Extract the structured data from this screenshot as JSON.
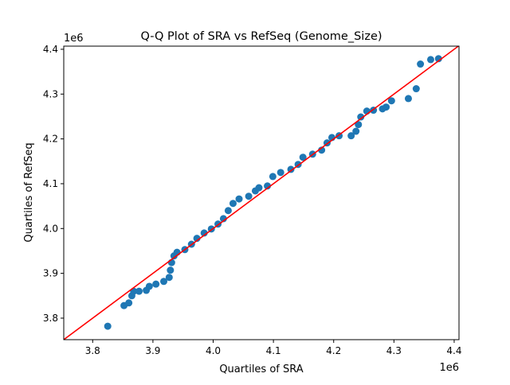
{
  "chart_data": {
    "type": "scatter",
    "title": "Q-Q Plot of SRA vs RefSeq (Genome_Size)",
    "xlabel": "Quartiles of SRA",
    "ylabel": "Quartiles of RefSeq",
    "x_offset_label": "1e6",
    "y_offset_label": "1e6",
    "xlim": [
      3.752,
      4.408
    ],
    "ylim": [
      3.752,
      4.407
    ],
    "xticks": [
      3.8,
      3.9,
      4.0,
      4.1,
      4.2,
      4.3,
      4.4
    ],
    "xtick_labels": [
      "3.8",
      "3.9",
      "4.0",
      "4.1",
      "4.2",
      "4.3",
      "4.4"
    ],
    "yticks": [
      3.8,
      3.9,
      4.0,
      4.1,
      4.2,
      4.3,
      4.4
    ],
    "ytick_labels": [
      "3.8",
      "3.9",
      "4.0",
      "4.1",
      "4.2",
      "4.3",
      "4.4"
    ],
    "grid": false,
    "point_color": "#1f77b4",
    "reference_line": {
      "type": "y=x",
      "color": "#ff0000"
    },
    "points": [
      [
        3.825,
        3.782
      ],
      [
        3.852,
        3.828
      ],
      [
        3.86,
        3.834
      ],
      [
        3.865,
        3.85
      ],
      [
        3.868,
        3.86
      ],
      [
        3.877,
        3.86
      ],
      [
        3.889,
        3.862
      ],
      [
        3.894,
        3.871
      ],
      [
        3.905,
        3.876
      ],
      [
        3.918,
        3.882
      ],
      [
        3.927,
        3.891
      ],
      [
        3.929,
        3.907
      ],
      [
        3.931,
        3.924
      ],
      [
        3.935,
        3.939
      ],
      [
        3.94,
        3.947
      ],
      [
        3.953,
        3.953
      ],
      [
        3.964,
        3.965
      ],
      [
        3.973,
        3.978
      ],
      [
        3.985,
        3.99
      ],
      [
        3.997,
        3.999
      ],
      [
        4.008,
        4.01
      ],
      [
        4.017,
        4.022
      ],
      [
        4.025,
        4.04
      ],
      [
        4.033,
        4.056
      ],
      [
        4.043,
        4.066
      ],
      [
        4.059,
        4.072
      ],
      [
        4.07,
        4.084
      ],
      [
        4.076,
        4.091
      ],
      [
        4.09,
        4.095
      ],
      [
        4.099,
        4.116
      ],
      [
        4.112,
        4.125
      ],
      [
        4.129,
        4.132
      ],
      [
        4.141,
        4.143
      ],
      [
        4.149,
        4.159
      ],
      [
        4.165,
        4.166
      ],
      [
        4.18,
        4.175
      ],
      [
        4.189,
        4.191
      ],
      [
        4.197,
        4.203
      ],
      [
        4.209,
        4.207
      ],
      [
        4.229,
        4.207
      ],
      [
        4.237,
        4.217
      ],
      [
        4.241,
        4.232
      ],
      [
        4.245,
        4.249
      ],
      [
        4.255,
        4.262
      ],
      [
        4.266,
        4.264
      ],
      [
        4.281,
        4.267
      ],
      [
        4.287,
        4.271
      ],
      [
        4.296,
        4.285
      ],
      [
        4.324,
        4.29
      ],
      [
        4.337,
        4.312
      ],
      [
        4.344,
        4.367
      ],
      [
        4.361,
        4.377
      ],
      [
        4.374,
        4.379
      ]
    ]
  }
}
